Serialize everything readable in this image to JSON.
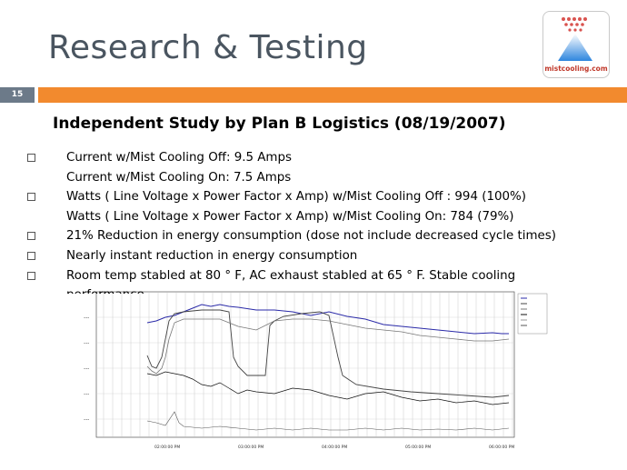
{
  "slide": {
    "title": "Research & Testing",
    "number": "15",
    "logo_text": "mistcooling.com",
    "accent_color": "#f28a2e",
    "number_box_color": "#6c7a89"
  },
  "study": {
    "heading": "Independent Study by Plan B Logistics (08/19/2007)",
    "items": [
      {
        "bullet": true,
        "text": "Current w/Mist Cooling Off: 9.5 Amps"
      },
      {
        "bullet": false,
        "text": "Current w/Mist Cooling On: 7.5 Amps"
      },
      {
        "bullet": true,
        "text": "Watts ( Line Voltage x Power Factor x Amp) w/Mist Cooling Off : 994 (100%)"
      },
      {
        "bullet": false,
        "text": "Watts ( Line Voltage x Power Factor x Amp) w/Mist Cooling On:  784 (79%)"
      },
      {
        "bullet": true,
        "text": "21% Reduction in energy consumption (dose not include decreased cycle times)"
      },
      {
        "bullet": true,
        "text": "Nearly instant reduction in energy consumption"
      },
      {
        "bullet": true,
        "text": "Room temp stabled at 80 ° F, AC exhaust stabled at 65 ° F.  Stable cooling"
      },
      {
        "bullet": false,
        "text": "performance"
      }
    ]
  },
  "chart_data": {
    "type": "line",
    "title": "",
    "x_tick_labels": [
      "02:00:00 PM",
      "03:00:00 PM",
      "04:00:00 PM",
      "05:00:00 PM",
      "06:00:00 PM",
      "07:00:00 PM"
    ],
    "series_colors": [
      "#2a2aa8",
      "#444444",
      "#777777",
      "#111111"
    ]
  }
}
